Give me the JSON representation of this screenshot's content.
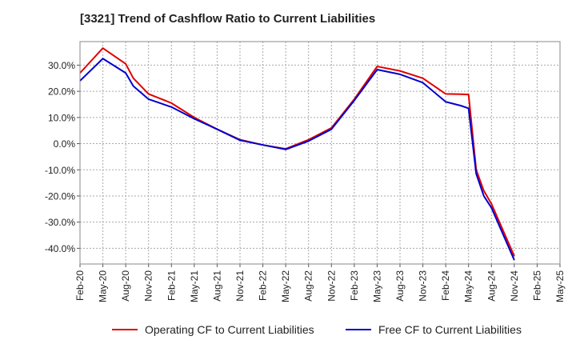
{
  "title": "[3321]  Trend of Cashflow Ratio to Current Liabilities",
  "chart_data": {
    "type": "line",
    "title": "[3321]  Trend of Cashflow Ratio to Current Liabilities",
    "xlabel": "",
    "ylabel": "",
    "x_ticks": [
      "Feb-20",
      "May-20",
      "Aug-20",
      "Nov-20",
      "Feb-21",
      "May-21",
      "Aug-21",
      "Nov-21",
      "Feb-22",
      "May-22",
      "Aug-22",
      "Nov-22",
      "Feb-23",
      "May-23",
      "Aug-23",
      "Nov-23",
      "Feb-24",
      "May-24",
      "Aug-24",
      "Nov-24",
      "Feb-25",
      "May-25"
    ],
    "y_ticks": [
      "30.0%",
      "20.0%",
      "10.0%",
      "0.0%",
      "-10.0%",
      "-20.0%",
      "-30.0%",
      "-40.0%"
    ],
    "y_tick_values": [
      30,
      20,
      10,
      0,
      -10,
      -20,
      -30,
      -40
    ],
    "ylim": [
      -46,
      39
    ],
    "grid": true,
    "legend_position": "bottom",
    "series": [
      {
        "name": "Operating CF to Current Liabilities",
        "color": "#e00000",
        "points": [
          [
            "Feb-20",
            27.0
          ],
          [
            "May-20",
            36.5
          ],
          [
            "Aug-20",
            30.5
          ],
          [
            "Sep-20",
            25.0
          ],
          [
            "Nov-20",
            19.0
          ],
          [
            "Feb-21",
            15.5
          ],
          [
            "May-21",
            10.0
          ],
          [
            "Aug-21",
            5.5
          ],
          [
            "Nov-21",
            1.5
          ],
          [
            "Feb-22",
            -0.5
          ],
          [
            "May-22",
            -2.0
          ],
          [
            "Aug-22",
            1.5
          ],
          [
            "Nov-22",
            6.0
          ],
          [
            "Feb-23",
            17.0
          ],
          [
            "May-23",
            29.5
          ],
          [
            "Aug-23",
            27.8
          ],
          [
            "Nov-23",
            25.0
          ],
          [
            "Feb-24",
            19.0
          ],
          [
            "Apr-24",
            18.9
          ],
          [
            "May-24",
            18.8
          ],
          [
            "Jun-24",
            -10.0
          ],
          [
            "Jul-24",
            -18.0
          ],
          [
            "Aug-24",
            -23.0
          ],
          [
            "Nov-24",
            -43.0
          ]
        ]
      },
      {
        "name": "Free CF to Current Liabilities",
        "color": "#0000d0",
        "points": [
          [
            "Feb-20",
            24.0
          ],
          [
            "May-20",
            32.5
          ],
          [
            "Aug-20",
            27.0
          ],
          [
            "Sep-20",
            22.0
          ],
          [
            "Nov-20",
            17.0
          ],
          [
            "Feb-21",
            14.0
          ],
          [
            "May-21",
            9.5
          ],
          [
            "Aug-21",
            5.5
          ],
          [
            "Nov-21",
            1.3
          ],
          [
            "Feb-22",
            -0.5
          ],
          [
            "May-22",
            -2.2
          ],
          [
            "Aug-22",
            1.0
          ],
          [
            "Nov-22",
            5.5
          ],
          [
            "Feb-23",
            16.5
          ],
          [
            "May-23",
            28.3
          ],
          [
            "Aug-23",
            26.5
          ],
          [
            "Nov-23",
            23.3
          ],
          [
            "Feb-24",
            16.0
          ],
          [
            "Apr-24",
            14.5
          ],
          [
            "May-24",
            13.5
          ],
          [
            "Jun-24",
            -11.5
          ],
          [
            "Jul-24",
            -20.0
          ],
          [
            "Aug-24",
            -24.5
          ],
          [
            "Nov-24",
            -44.5
          ]
        ]
      }
    ]
  }
}
